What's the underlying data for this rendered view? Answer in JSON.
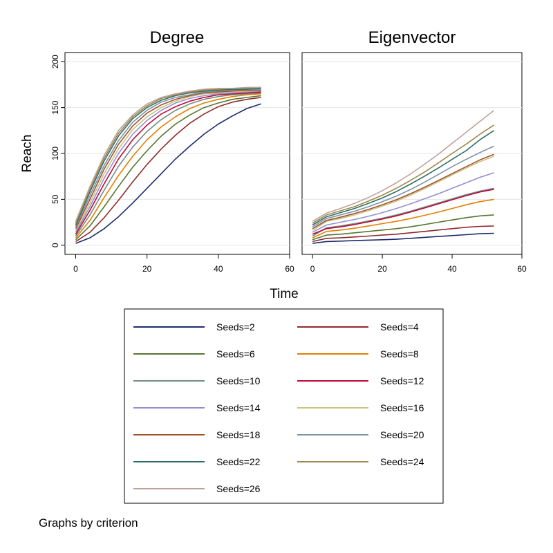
{
  "chart_data": {
    "type": "line",
    "ylabel": "Reach",
    "xlabel": "Time",
    "note": "Graphs by criterion",
    "x": [
      0,
      4,
      8,
      12,
      16,
      20,
      24,
      28,
      32,
      36,
      40,
      44,
      48,
      52
    ],
    "xlim": [
      -3,
      60
    ],
    "ylim": [
      -10,
      210
    ],
    "xticks": [
      0,
      20,
      40,
      60
    ],
    "yticks": [
      0,
      50,
      100,
      150,
      200
    ],
    "grid": true,
    "legend_placement": "bottom",
    "series_styles": [
      {
        "name": "Seeds=2",
        "color": "#1a2a6c"
      },
      {
        "name": "Seeds=4",
        "color": "#90282c"
      },
      {
        "name": "Seeds=6",
        "color": "#55752f"
      },
      {
        "name": "Seeds=8",
        "color": "#e37e00"
      },
      {
        "name": "Seeds=10",
        "color": "#6e8e84"
      },
      {
        "name": "Seeds=12",
        "color": "#c10534"
      },
      {
        "name": "Seeds=14",
        "color": "#938dd2"
      },
      {
        "name": "Seeds=16",
        "color": "#cac27e"
      },
      {
        "name": "Seeds=18",
        "color": "#a0522d"
      },
      {
        "name": "Seeds=20",
        "color": "#7b92a8"
      },
      {
        "name": "Seeds=22",
        "color": "#2d6d66"
      },
      {
        "name": "Seeds=24",
        "color": "#9c8847"
      },
      {
        "name": "Seeds=26",
        "color": "#bfa19c"
      }
    ],
    "panels": [
      {
        "title": "Degree",
        "series": [
          {
            "name": "Seeds=2",
            "values": [
              2,
              8,
              18,
              31,
              46,
              62,
              78,
              94,
              108,
              121,
              132,
              141,
              149,
              154
            ]
          },
          {
            "name": "Seeds=4",
            "values": [
              4,
              14,
              30,
              49,
              69,
              88,
              105,
              120,
              133,
              143,
              151,
              156,
              159,
              161
            ]
          },
          {
            "name": "Seeds=6",
            "values": [
              6,
              21,
              42,
              64,
              85,
              103,
              119,
              132,
              142,
              150,
              155,
              159,
              161,
              163
            ]
          },
          {
            "name": "Seeds=8",
            "values": [
              8,
              27,
              52,
              76,
              97,
              115,
              129,
              140,
              149,
              155,
              159,
              162,
              164,
              165
            ]
          },
          {
            "name": "Seeds=10",
            "values": [
              10,
              33,
              60,
              86,
              107,
              124,
              137,
              147,
              154,
              159,
              162,
              164,
              165,
              166
            ]
          },
          {
            "name": "Seeds=12",
            "values": [
              12,
              38,
              67,
              94,
              115,
              131,
              143,
              151,
              157,
              161,
              164,
              165,
              166,
              167
            ]
          },
          {
            "name": "Seeds=14",
            "values": [
              14,
              42,
              73,
              100,
              121,
              136,
              147,
              155,
              160,
              163,
              165,
              166,
              167,
              168
            ]
          },
          {
            "name": "Seeds=16",
            "values": [
              16,
              46,
              78,
              105,
              126,
              140,
              150,
              157,
              162,
              165,
              166,
              167,
              168,
              169
            ]
          },
          {
            "name": "Seeds=18",
            "values": [
              18,
              50,
              83,
              110,
              130,
              144,
              153,
              159,
              163,
              166,
              167,
              168,
              169,
              169
            ]
          },
          {
            "name": "Seeds=20",
            "values": [
              20,
              54,
              87,
              114,
              134,
              147,
              156,
              161,
              164,
              167,
              168,
              169,
              170,
              170
            ]
          },
          {
            "name": "Seeds=22",
            "values": [
              22,
              58,
              92,
              119,
              138,
              150,
              158,
              163,
              166,
              168,
              169,
              170,
              170,
              171
            ]
          },
          {
            "name": "Seeds=24",
            "values": [
              24,
              61,
              95,
              122,
              140,
              152,
              160,
              164,
              167,
              169,
              170,
              171,
              171,
              172
            ]
          },
          {
            "name": "Seeds=26",
            "values": [
              26,
              64,
              98,
              125,
              142,
              154,
              161,
              165,
              168,
              170,
              171,
              171,
              172,
              172
            ]
          }
        ]
      },
      {
        "title": "Eigenvector",
        "series": [
          {
            "name": "Seeds=2",
            "values": [
              2,
              4,
              4.5,
              5,
              5.5,
              6,
              6.5,
              7.5,
              8.5,
              9.5,
              10.5,
              11.5,
              12.5,
              13
            ]
          },
          {
            "name": "Seeds=4",
            "values": [
              4,
              7.5,
              8,
              9,
              10,
              11,
              12,
              13.5,
              15,
              16.5,
              18,
              19.5,
              20.5,
              21
            ]
          },
          {
            "name": "Seeds=6",
            "values": [
              6,
              11,
              12,
              13.5,
              15,
              16.5,
              18,
              20,
              22.5,
              25,
              27.5,
              30,
              32,
              33
            ]
          },
          {
            "name": "Seeds=8",
            "values": [
              8,
              15,
              16.5,
              18.5,
              21,
              23.5,
              26,
              29,
              32.5,
              36,
              40,
              44,
              47.5,
              50
            ]
          },
          {
            "name": "Seeds=10",
            "values": [
              10,
              19,
              21,
              23.5,
              26.5,
              29.5,
              33,
              37,
              41.5,
              46,
              50.5,
              55,
              59,
              62
            ]
          },
          {
            "name": "Seeds=12",
            "values": [
              12,
              18,
              20,
              22.5,
              25.5,
              28.5,
              32,
              36,
              40.5,
              45,
              49.5,
              54,
              58,
              61
            ]
          },
          {
            "name": "Seeds=14",
            "values": [
              14,
              22,
              25,
              28,
              31.5,
              35.5,
              40,
              45,
              50.5,
              56,
              62,
              68,
              74,
              79
            ]
          },
          {
            "name": "Seeds=16",
            "values": [
              16,
              26,
              29,
              33,
              37.5,
              42.5,
              48,
              54.5,
              61.5,
              69,
              76.5,
              84,
              91,
              97
            ]
          },
          {
            "name": "Seeds=18",
            "values": [
              18,
              27,
              30.5,
              34.5,
              39,
              44,
              49.5,
              56,
              63,
              70.5,
              78,
              85.5,
              93,
              99
            ]
          },
          {
            "name": "Seeds=20",
            "values": [
              20,
              29,
              33,
              37,
              42,
              47.5,
              53.5,
              60.5,
              68.5,
              77,
              85.5,
              93.5,
              101,
              108
            ]
          },
          {
            "name": "Seeds=22",
            "values": [
              22,
              31,
              35.5,
              40,
              45.5,
              51.5,
              58.5,
              66.5,
              75,
              84,
              93.5,
              103,
              115,
              125
            ]
          },
          {
            "name": "Seeds=24",
            "values": [
              24,
              33,
              37.5,
              42,
              48,
              54.5,
              62,
              70.5,
              79.5,
              89.5,
              100,
              110,
              121,
              131
            ]
          },
          {
            "name": "Seeds=26",
            "values": [
              26,
              35,
              40,
              45.5,
              52,
              59.5,
              68,
              77.5,
              88,
              99,
              111,
              123,
              135,
              147
            ]
          }
        ]
      }
    ]
  }
}
